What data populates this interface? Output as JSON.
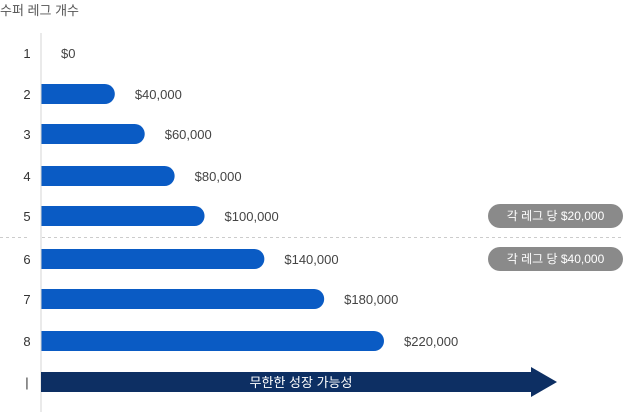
{
  "chart_data": {
    "type": "bar",
    "orientation": "horizontal",
    "title": "수퍼 레그 개수",
    "categories": [
      "1",
      "2",
      "3",
      "4",
      "5",
      "6",
      "7",
      "8"
    ],
    "values": [
      0,
      40000,
      60000,
      80000,
      100000,
      140000,
      180000,
      220000
    ],
    "value_labels": [
      "$0",
      "$40,000",
      "$60,000",
      "$80,000",
      "$100,000",
      "$140,000",
      "$180,000",
      "$220,000"
    ],
    "xlim": [
      0,
      220000
    ],
    "grid": false,
    "bar_color": "#0a5bc4",
    "divider_after_category": "5",
    "rate_badges": [
      {
        "label": "각 레그 당 $20,000",
        "category": "5"
      },
      {
        "label": "각 레그 당 $40,000",
        "category": "6"
      }
    ],
    "badge_color": "#8a8a8a",
    "arrow": {
      "category_label": "|",
      "label": "무한한 성장 가능성",
      "color": "#0d2f63"
    }
  }
}
